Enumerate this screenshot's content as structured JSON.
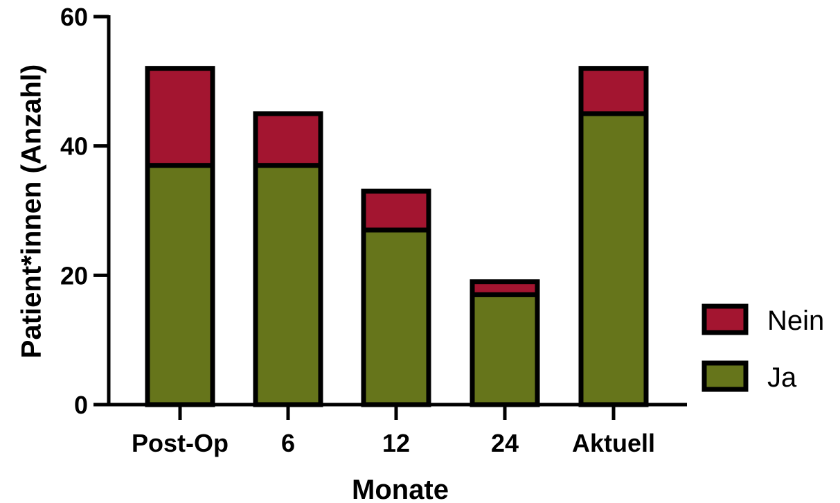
{
  "chart_data": {
    "type": "bar",
    "stacked": true,
    "categories": [
      "Post-Op",
      "6",
      "12",
      "24",
      "Aktuell"
    ],
    "series": [
      {
        "name": "Ja",
        "color": "#66751b",
        "values": [
          37,
          37,
          27,
          17,
          45
        ]
      },
      {
        "name": "Nein",
        "color": "#a31530",
        "values": [
          15,
          8,
          6,
          2,
          7
        ]
      }
    ],
    "xlabel": "Monate",
    "ylabel": "Patient*innen (Anzahl)",
    "ylim": [
      0,
      60
    ],
    "yticks": [
      0,
      20,
      40,
      60
    ],
    "grid": false,
    "legend_position": "right"
  }
}
